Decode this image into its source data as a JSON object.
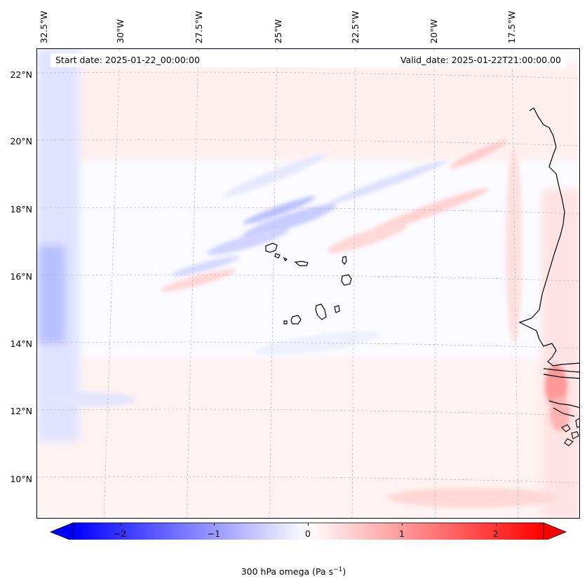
{
  "map": {
    "start_date": "Start date: 2025-01-22_00:00:00",
    "valid_date": "Valid_date: 2025-01-22T21:00:00.00",
    "lon_labels": [
      "32.5°W",
      "30°W",
      "27.5°W",
      "25°W",
      "22.5°W",
      "20°W",
      "17.5°W"
    ],
    "lat_labels": [
      "22°N",
      "20°N",
      "18°N",
      "16°N",
      "14°N",
      "12°N",
      "10°N"
    ]
  },
  "colorbar": {
    "title": "300 hPa omega (Pa s",
    "title_exp": "−1",
    "title_end": ")",
    "tick_labels": [
      "−2",
      "−1",
      "0",
      "1",
      "2"
    ],
    "min": -2.5,
    "max": 2.5,
    "ticks": [
      -2,
      -1,
      0,
      1,
      2
    ],
    "low_color": "#0000ff",
    "mid_color": "#ffffff",
    "high_color": "#ff0000"
  },
  "colors": {
    "coast": "#000000",
    "grid": "#b0b0b0"
  }
}
